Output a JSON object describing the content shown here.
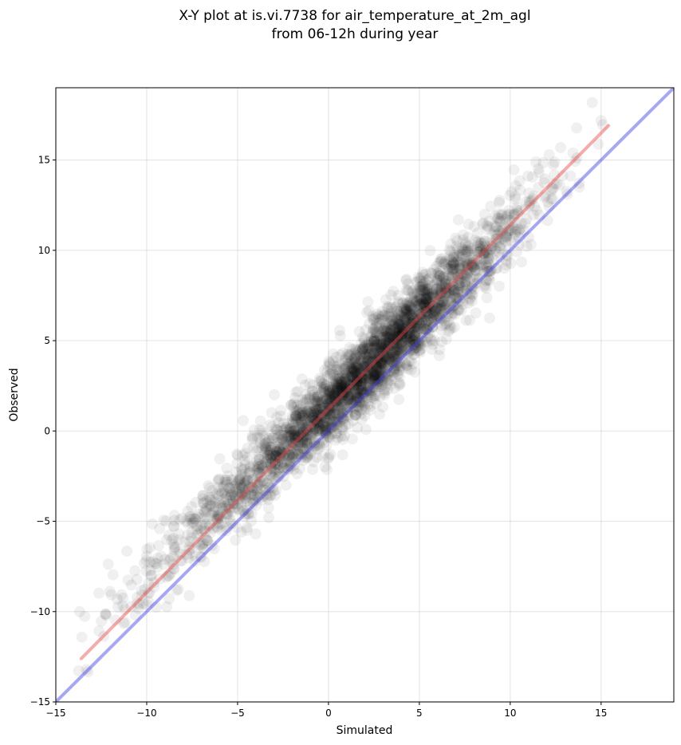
{
  "chart_data": {
    "type": "scatter",
    "title": "X-Y plot at is.vi.7738 for air_temperature_at_2m_agl",
    "subtitle": "from 06-12h during year",
    "xlabel": "Simulated",
    "ylabel": "Observed",
    "xlim": [
      -15,
      19
    ],
    "ylim": [
      -15,
      19
    ],
    "xticks": [
      -15,
      -10,
      -5,
      0,
      5,
      10,
      15
    ],
    "yticks": [
      -15,
      -10,
      -5,
      0,
      5,
      10,
      15
    ],
    "xtick_labels": [
      "−15",
      "−10",
      "−5",
      "0",
      "5",
      "10",
      "15"
    ],
    "ytick_labels": [
      "−15",
      "−10",
      "−5",
      "0",
      "5",
      "10",
      "15"
    ],
    "grid": true,
    "point_color": "#000000",
    "point_opacity": 0.06,
    "density": [
      {
        "x": -13.6,
        "y": -12.0,
        "n": 6
      },
      {
        "x": -12.5,
        "y": -10.5,
        "n": 8
      },
      {
        "x": -11.5,
        "y": -9.5,
        "n": 12
      },
      {
        "x": -10.5,
        "y": -8.5,
        "n": 18
      },
      {
        "x": -9.5,
        "y": -7.5,
        "n": 26
      },
      {
        "x": -8.5,
        "y": -6.6,
        "n": 34
      },
      {
        "x": -7.5,
        "y": -5.7,
        "n": 46
      },
      {
        "x": -6.5,
        "y": -4.8,
        "n": 60
      },
      {
        "x": -5.5,
        "y": -3.9,
        "n": 76
      },
      {
        "x": -4.5,
        "y": -3.0,
        "n": 95
      },
      {
        "x": -3.5,
        "y": -2.0,
        "n": 115
      },
      {
        "x": -2.5,
        "y": -1.0,
        "n": 140
      },
      {
        "x": -1.5,
        "y": -0.1,
        "n": 170
      },
      {
        "x": -0.5,
        "y": 0.8,
        "n": 205
      },
      {
        "x": 0.5,
        "y": 1.8,
        "n": 245
      },
      {
        "x": 1.5,
        "y": 2.8,
        "n": 270
      },
      {
        "x": 2.5,
        "y": 3.8,
        "n": 285
      },
      {
        "x": 3.5,
        "y": 4.8,
        "n": 275
      },
      {
        "x": 4.5,
        "y": 5.8,
        "n": 245
      },
      {
        "x": 5.5,
        "y": 6.8,
        "n": 205
      },
      {
        "x": 6.5,
        "y": 7.8,
        "n": 165
      },
      {
        "x": 7.5,
        "y": 8.8,
        "n": 125
      },
      {
        "x": 8.5,
        "y": 9.8,
        "n": 90
      },
      {
        "x": 9.5,
        "y": 10.8,
        "n": 62
      },
      {
        "x": 10.5,
        "y": 11.9,
        "n": 42
      },
      {
        "x": 11.5,
        "y": 12.9,
        "n": 26
      },
      {
        "x": 12.5,
        "y": 13.9,
        "n": 14
      },
      {
        "x": 13.5,
        "y": 14.9,
        "n": 7
      },
      {
        "x": 14.8,
        "y": 16.0,
        "n": 4
      }
    ],
    "series": [
      {
        "type": "line",
        "color": "#ee4444",
        "opacity": 0.45,
        "x": [
          -13.6,
          15.4
        ],
        "y": [
          -12.6,
          16.9
        ]
      },
      {
        "type": "line",
        "color": "#3b3bee",
        "opacity": 0.45,
        "x": [
          -15,
          19
        ],
        "y": [
          -15,
          19
        ]
      }
    ]
  }
}
